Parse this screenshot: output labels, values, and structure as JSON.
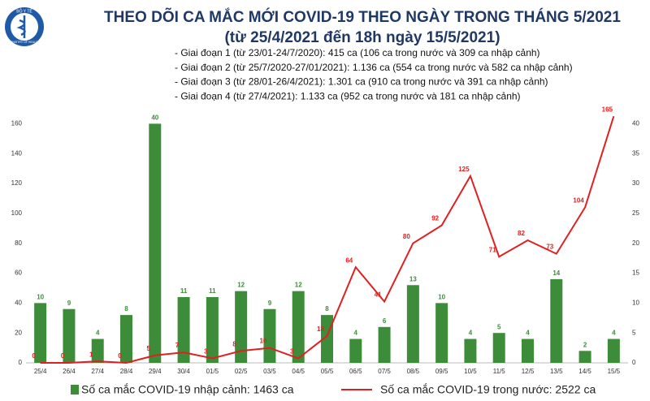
{
  "header": {
    "logo_top": "BỘ Y TẾ",
    "logo_bottom": "MINISTRY OF HEALTH"
  },
  "chart_data": {
    "type": "combo",
    "title": "THEO DÕI CA MẮC MỚI COVID-19 THEO NGÀY TRONG THÁNG 5/2021",
    "subtitle": "(từ 25/4/2021 đến 18h ngày 15/5/2021)",
    "annotations": [
      "- Giai đoạn 1 (từ 23/01-24/7/2020): 415 ca (106 ca trong nước và 309 ca nhập cảnh)",
      "- Giai đoạn 2 (từ 25/7/2020-27/01/2021): 1.136 ca (554 ca trong nước và 582 ca nhập cảnh)",
      "- Giai đoạn 3 (từ 28/01-26/4/2021): 1.301 ca (910 ca trong nước và 391 ca nhập cảnh)",
      "- Giai đoạn 4 (từ 27/4/2021): 1.133 ca (952 ca trong nước và 181 ca nhập cảnh)"
    ],
    "categories": [
      "25/4",
      "26/4",
      "27/4",
      "28/4",
      "29/4",
      "30/4",
      "01/5",
      "02/5",
      "03/5",
      "04/5",
      "05/5",
      "06/5",
      "07/5",
      "08/5",
      "09/5",
      "10/5",
      "11/5",
      "12/5",
      "13/5",
      "14/5",
      "15/5"
    ],
    "series": [
      {
        "name": "Số ca mắc COVID-19 nhập cảnh: 1463 ca",
        "type": "bar",
        "axis": "y2",
        "color": "#3d8c3a",
        "values": [
          10,
          9,
          4,
          8,
          40,
          11,
          11,
          12,
          9,
          12,
          8,
          4,
          6,
          13,
          10,
          4,
          5,
          4,
          14,
          2,
          4
        ]
      },
      {
        "name": "Số ca mắc COVID-19 trong nước: 2522 ca",
        "type": "line",
        "color": "#e02020",
        "values": [
          0,
          0,
          1,
          0,
          5,
          7,
          3,
          8,
          10,
          3,
          18,
          64,
          41,
          80,
          92,
          125,
          71,
          82,
          73,
          104,
          165
        ]
      }
    ],
    "ylim": [
      0,
      170
    ],
    "yticks": [
      0,
      20,
      40,
      60,
      80,
      100,
      120,
      140,
      160
    ],
    "y2lim": [
      0,
      42.5
    ],
    "y2ticks": [
      0,
      5,
      10,
      15,
      20,
      25,
      30,
      35,
      40
    ],
    "grid": false,
    "legend": "bottom"
  }
}
